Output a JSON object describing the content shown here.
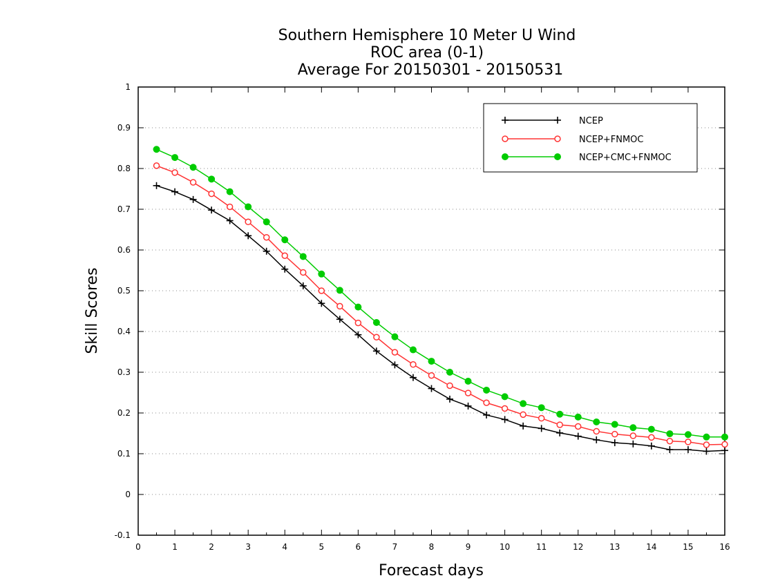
{
  "chart_data": {
    "type": "line",
    "title_lines": [
      "Southern Hemisphere 10 Meter U Wind",
      "ROC area (0-1)",
      "Average For 20150301 - 20150531"
    ],
    "xlabel": "Forecast days",
    "ylabel": "Skill Scores",
    "xlim": [
      0,
      16
    ],
    "ylim": [
      -0.1,
      1
    ],
    "x_ticks": [
      "0",
      "1",
      "2",
      "3",
      "4",
      "5",
      "6",
      "7",
      "8",
      "9",
      "10",
      "11",
      "12",
      "13",
      "14",
      "15",
      "16"
    ],
    "y_ticks": [
      "-0.1",
      "0",
      "0.1",
      "0.2",
      "0.3",
      "0.4",
      "0.5",
      "0.6",
      "0.7",
      "0.8",
      "0.9",
      "1"
    ],
    "grid": "horizontal dotted",
    "legend_position": "top-right",
    "x": [
      0.5,
      1,
      1.5,
      2,
      2.5,
      3,
      3.5,
      4,
      4.5,
      5,
      5.5,
      6,
      6.5,
      7,
      7.5,
      8,
      8.5,
      9,
      9.5,
      10,
      10.5,
      11,
      11.5,
      12,
      12.5,
      13,
      13.5,
      14,
      14.5,
      15,
      15.5,
      16
    ],
    "series": [
      {
        "name": "NCEP",
        "color": "#000000",
        "marker": "plus",
        "values": [
          0.758,
          0.743,
          0.724,
          0.698,
          0.672,
          0.635,
          0.597,
          0.553,
          0.512,
          0.469,
          0.43,
          0.392,
          0.352,
          0.318,
          0.287,
          0.26,
          0.234,
          0.217,
          0.195,
          0.184,
          0.168,
          0.162,
          0.151,
          0.143,
          0.134,
          0.127,
          0.124,
          0.119,
          0.11,
          0.11,
          0.106,
          0.108
        ]
      },
      {
        "name": "NCEP+FNMOC",
        "color": "#ff3333",
        "marker": "open-circle",
        "values": [
          0.807,
          0.79,
          0.766,
          0.738,
          0.706,
          0.669,
          0.631,
          0.586,
          0.545,
          0.5,
          0.462,
          0.421,
          0.386,
          0.349,
          0.319,
          0.292,
          0.267,
          0.249,
          0.225,
          0.211,
          0.196,
          0.187,
          0.171,
          0.167,
          0.155,
          0.148,
          0.144,
          0.14,
          0.131,
          0.129,
          0.122,
          0.123
        ]
      },
      {
        "name": "NCEP+CMC+FNMOC",
        "color": "#00cc00",
        "marker": "filled-circle",
        "values": [
          0.847,
          0.827,
          0.803,
          0.774,
          0.743,
          0.706,
          0.669,
          0.625,
          0.584,
          0.541,
          0.501,
          0.46,
          0.422,
          0.387,
          0.355,
          0.327,
          0.3,
          0.278,
          0.256,
          0.24,
          0.223,
          0.213,
          0.197,
          0.19,
          0.178,
          0.172,
          0.164,
          0.16,
          0.149,
          0.147,
          0.141,
          0.141
        ]
      }
    ]
  }
}
